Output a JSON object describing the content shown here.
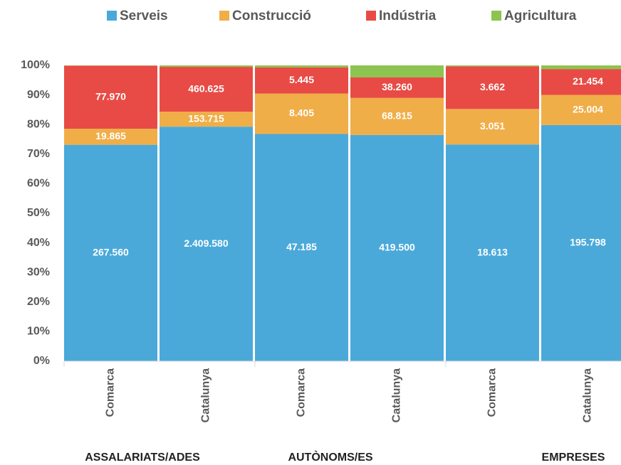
{
  "chart_data": {
    "type": "stacked_bar_100",
    "categories": [
      "Comarca",
      "Catalunya",
      "Comarca",
      "Catalunya",
      "Comarca",
      "Catalunya"
    ],
    "groups": [
      "ASSALARIATS/ADES",
      "AUTÒNOMS/ES",
      "EMPRESES"
    ],
    "series": [
      {
        "name": "Serveis",
        "color": "#4aa9d9",
        "values": [
          267560,
          2409580,
          47185,
          419500,
          18613,
          195798
        ],
        "value_labels": [
          "267.560",
          "2.409.580",
          "47.185",
          "419.500",
          "18.613",
          "195.798"
        ]
      },
      {
        "name": "Construcció",
        "color": "#f0ae48",
        "values": [
          19865,
          153715,
          8405,
          68815,
          3051,
          25004
        ],
        "value_labels": [
          "19.865",
          "153.715",
          "8.405",
          "68.815",
          "3.051",
          "25.004"
        ]
      },
      {
        "name": "Indústria",
        "color": "#e84b45",
        "values": [
          77970,
          460625,
          5445,
          38260,
          3662,
          21454
        ],
        "value_labels": [
          "77.970",
          "460.625",
          "5.445",
          "38.260",
          "3.662",
          "21.454"
        ]
      },
      {
        "name": "Agricultura",
        "color": "#8cc44f",
        "values": [
          300,
          15000,
          400,
          22000,
          80,
          3000
        ]
      }
    ],
    "ylim": [
      0,
      100
    ],
    "yticks": [
      {
        "value": 0,
        "label": "0%"
      },
      {
        "value": 10,
        "label": "10%"
      },
      {
        "value": 20,
        "label": "20%"
      },
      {
        "value": 30,
        "label": "30%"
      },
      {
        "value": 40,
        "label": "40%"
      },
      {
        "value": 50,
        "label": "50%"
      },
      {
        "value": 60,
        "label": "60%"
      },
      {
        "value": 70,
        "label": "70%"
      },
      {
        "value": 80,
        "label": "80%"
      },
      {
        "value": 90,
        "label": "90%"
      },
      {
        "value": 100,
        "label": "100%"
      }
    ],
    "grid": false
  }
}
